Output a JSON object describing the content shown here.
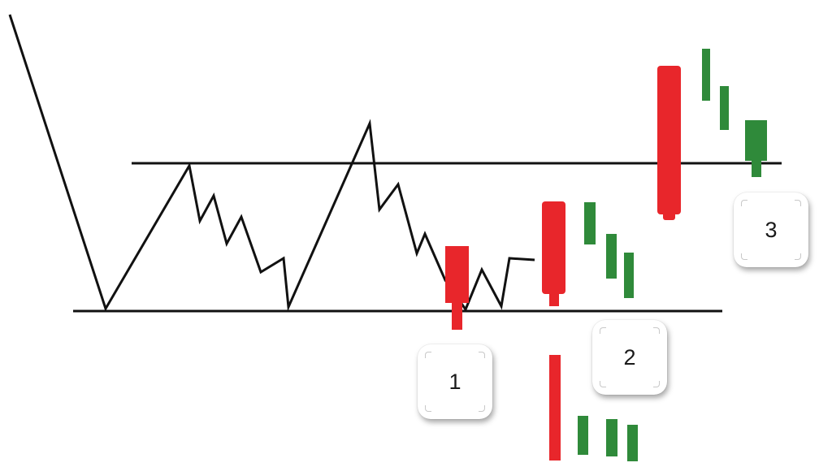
{
  "colors": {
    "line": "#111111",
    "bearish": "#e8262b",
    "bullish": "#2f8a3a"
  },
  "labels": {
    "step_1": "1",
    "step_2": "2",
    "step_3": "3"
  }
}
